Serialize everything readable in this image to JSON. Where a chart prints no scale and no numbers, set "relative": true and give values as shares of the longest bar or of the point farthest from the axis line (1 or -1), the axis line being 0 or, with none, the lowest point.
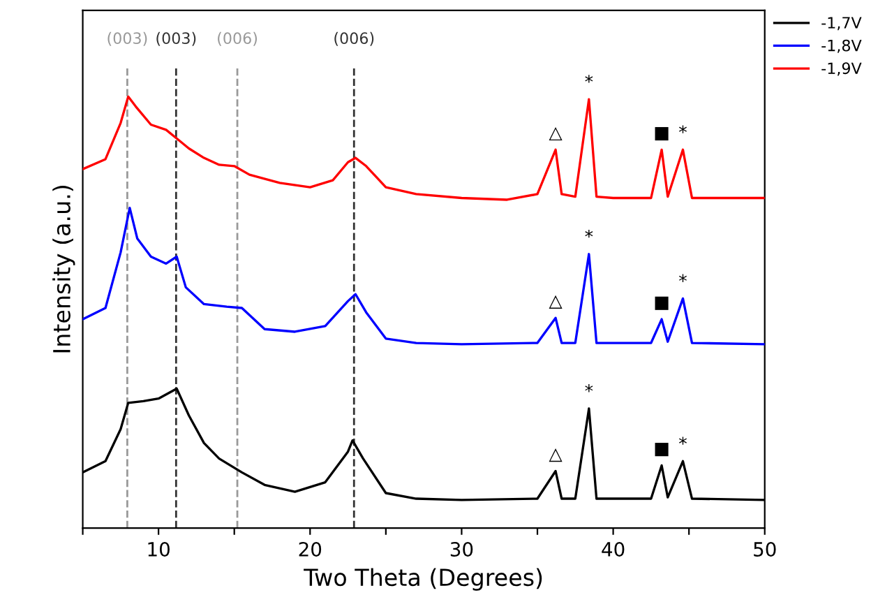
{
  "chart_data": {
    "type": "line",
    "relative": true,
    "xlabel": "Two Theta (Degrees)",
    "ylabel": "Intensity (a.u.)",
    "xlim": [
      5,
      50
    ],
    "xticks": [
      {
        "value": 5,
        "label": null
      },
      10,
      {
        "value": 15,
        "label": null
      },
      20,
      {
        "value": 25,
        "label": null
      },
      30,
      {
        "value": 35,
        "label": null
      },
      40,
      {
        "value": 45,
        "label": null
      },
      50
    ],
    "tick_labels": "x",
    "legend": "top right",
    "line_style": "solid",
    "series": [
      {
        "name": "-1,7V",
        "color": "#000000",
        "x": [
          5,
          6.5,
          7.5,
          8,
          9,
          10,
          11.2,
          12,
          13,
          14,
          15.5,
          17,
          19,
          21,
          22.5,
          22.8,
          23.5,
          25,
          27,
          30,
          35,
          36.2,
          36.6,
          37.5,
          38.4,
          38.9,
          42.5,
          43.2,
          43.6,
          44.6,
          45.2,
          50
        ],
        "values": [
          0.129,
          0.155,
          0.229,
          0.29,
          0.294,
          0.3,
          0.323,
          0.261,
          0.197,
          0.161,
          0.129,
          0.1,
          0.084,
          0.106,
          0.177,
          0.203,
          0.161,
          0.081,
          0.068,
          0.065,
          0.068,
          0.132,
          0.068,
          0.068,
          0.277,
          0.068,
          0.068,
          0.145,
          0.071,
          0.155,
          0.068,
          0.065
        ]
      },
      {
        "name": "-1,8V",
        "color": "#0000ff",
        "x": [
          5,
          6.5,
          7.5,
          8.1,
          8.6,
          9.5,
          10.5,
          11.2,
          11.8,
          13,
          14.5,
          15.5,
          17,
          19,
          21,
          22.5,
          23,
          23.7,
          25,
          27,
          30,
          35,
          36.2,
          36.6,
          37.5,
          38.4,
          38.9,
          42.5,
          43.2,
          43.6,
          44.6,
          45.2,
          50
        ],
        "values": [
          0.484,
          0.51,
          0.639,
          0.742,
          0.671,
          0.629,
          0.613,
          0.629,
          0.558,
          0.519,
          0.513,
          0.51,
          0.461,
          0.455,
          0.468,
          0.526,
          0.542,
          0.5,
          0.439,
          0.429,
          0.426,
          0.429,
          0.487,
          0.429,
          0.429,
          0.635,
          0.429,
          0.429,
          0.484,
          0.432,
          0.532,
          0.429,
          0.426
        ]
      },
      {
        "name": "-1,9V",
        "color": "#ff0000",
        "x": [
          5,
          6.5,
          7.5,
          8,
          8.5,
          9.5,
          10.5,
          11.2,
          12,
          13,
          14,
          15,
          16,
          18,
          20,
          21.5,
          22.5,
          23,
          23.7,
          25,
          27,
          30,
          33,
          35,
          36.2,
          36.6,
          37.5,
          38.4,
          38.9,
          40,
          42.5,
          43.2,
          43.6,
          44.6,
          45.2,
          50
        ],
        "values": [
          0.832,
          0.855,
          0.939,
          1.0,
          0.977,
          0.935,
          0.923,
          0.903,
          0.88,
          0.858,
          0.842,
          0.839,
          0.819,
          0.8,
          0.79,
          0.806,
          0.848,
          0.858,
          0.839,
          0.79,
          0.774,
          0.765,
          0.761,
          0.774,
          0.877,
          0.774,
          0.768,
          0.994,
          0.768,
          0.765,
          0.765,
          0.877,
          0.768,
          0.877,
          0.765,
          0.765
        ]
      }
    ],
    "ref_lines": [
      {
        "axis": "x",
        "value": 7.94,
        "color": "#999999",
        "line_style": "dashed"
      },
      {
        "axis": "x",
        "value": 11.16,
        "color": "#333333",
        "line_style": "dashed"
      },
      {
        "axis": "x",
        "value": 15.2,
        "color": "#999999",
        "line_style": "dashed"
      },
      {
        "axis": "x",
        "value": 22.9,
        "color": "#333333",
        "line_style": "dashed"
      }
    ],
    "annotations": [
      {
        "text": "(003)",
        "x": 7.94,
        "y": 1.07
      },
      {
        "text": "(003)",
        "x": 11.16,
        "y": 1.07
      },
      {
        "text": "(006)",
        "x": 15.2,
        "y": 1.07
      },
      {
        "text": "(006)",
        "x": 22.9,
        "y": 1.07
      },
      {
        "text": "△",
        "x": 36.2,
        "y": 0.877
      },
      {
        "text": "*",
        "x": 38.4,
        "y": 0.994
      },
      {
        "text": "■",
        "x": 43.2,
        "y": 0.877
      },
      {
        "text": "*",
        "x": 44.6,
        "y": 0.877
      },
      {
        "text": "△",
        "x": 36.2,
        "y": 0.487
      },
      {
        "text": "*",
        "x": 38.4,
        "y": 0.635
      },
      {
        "text": "■",
        "x": 43.2,
        "y": 0.484
      },
      {
        "text": "*",
        "x": 44.6,
        "y": 0.532
      },
      {
        "text": "△",
        "x": 36.2,
        "y": 0.132
      },
      {
        "text": "*",
        "x": 38.4,
        "y": 0.277
      },
      {
        "text": "■",
        "x": 43.2,
        "y": 0.145
      },
      {
        "text": "*",
        "x": 44.6,
        "y": 0.155
      }
    ]
  }
}
